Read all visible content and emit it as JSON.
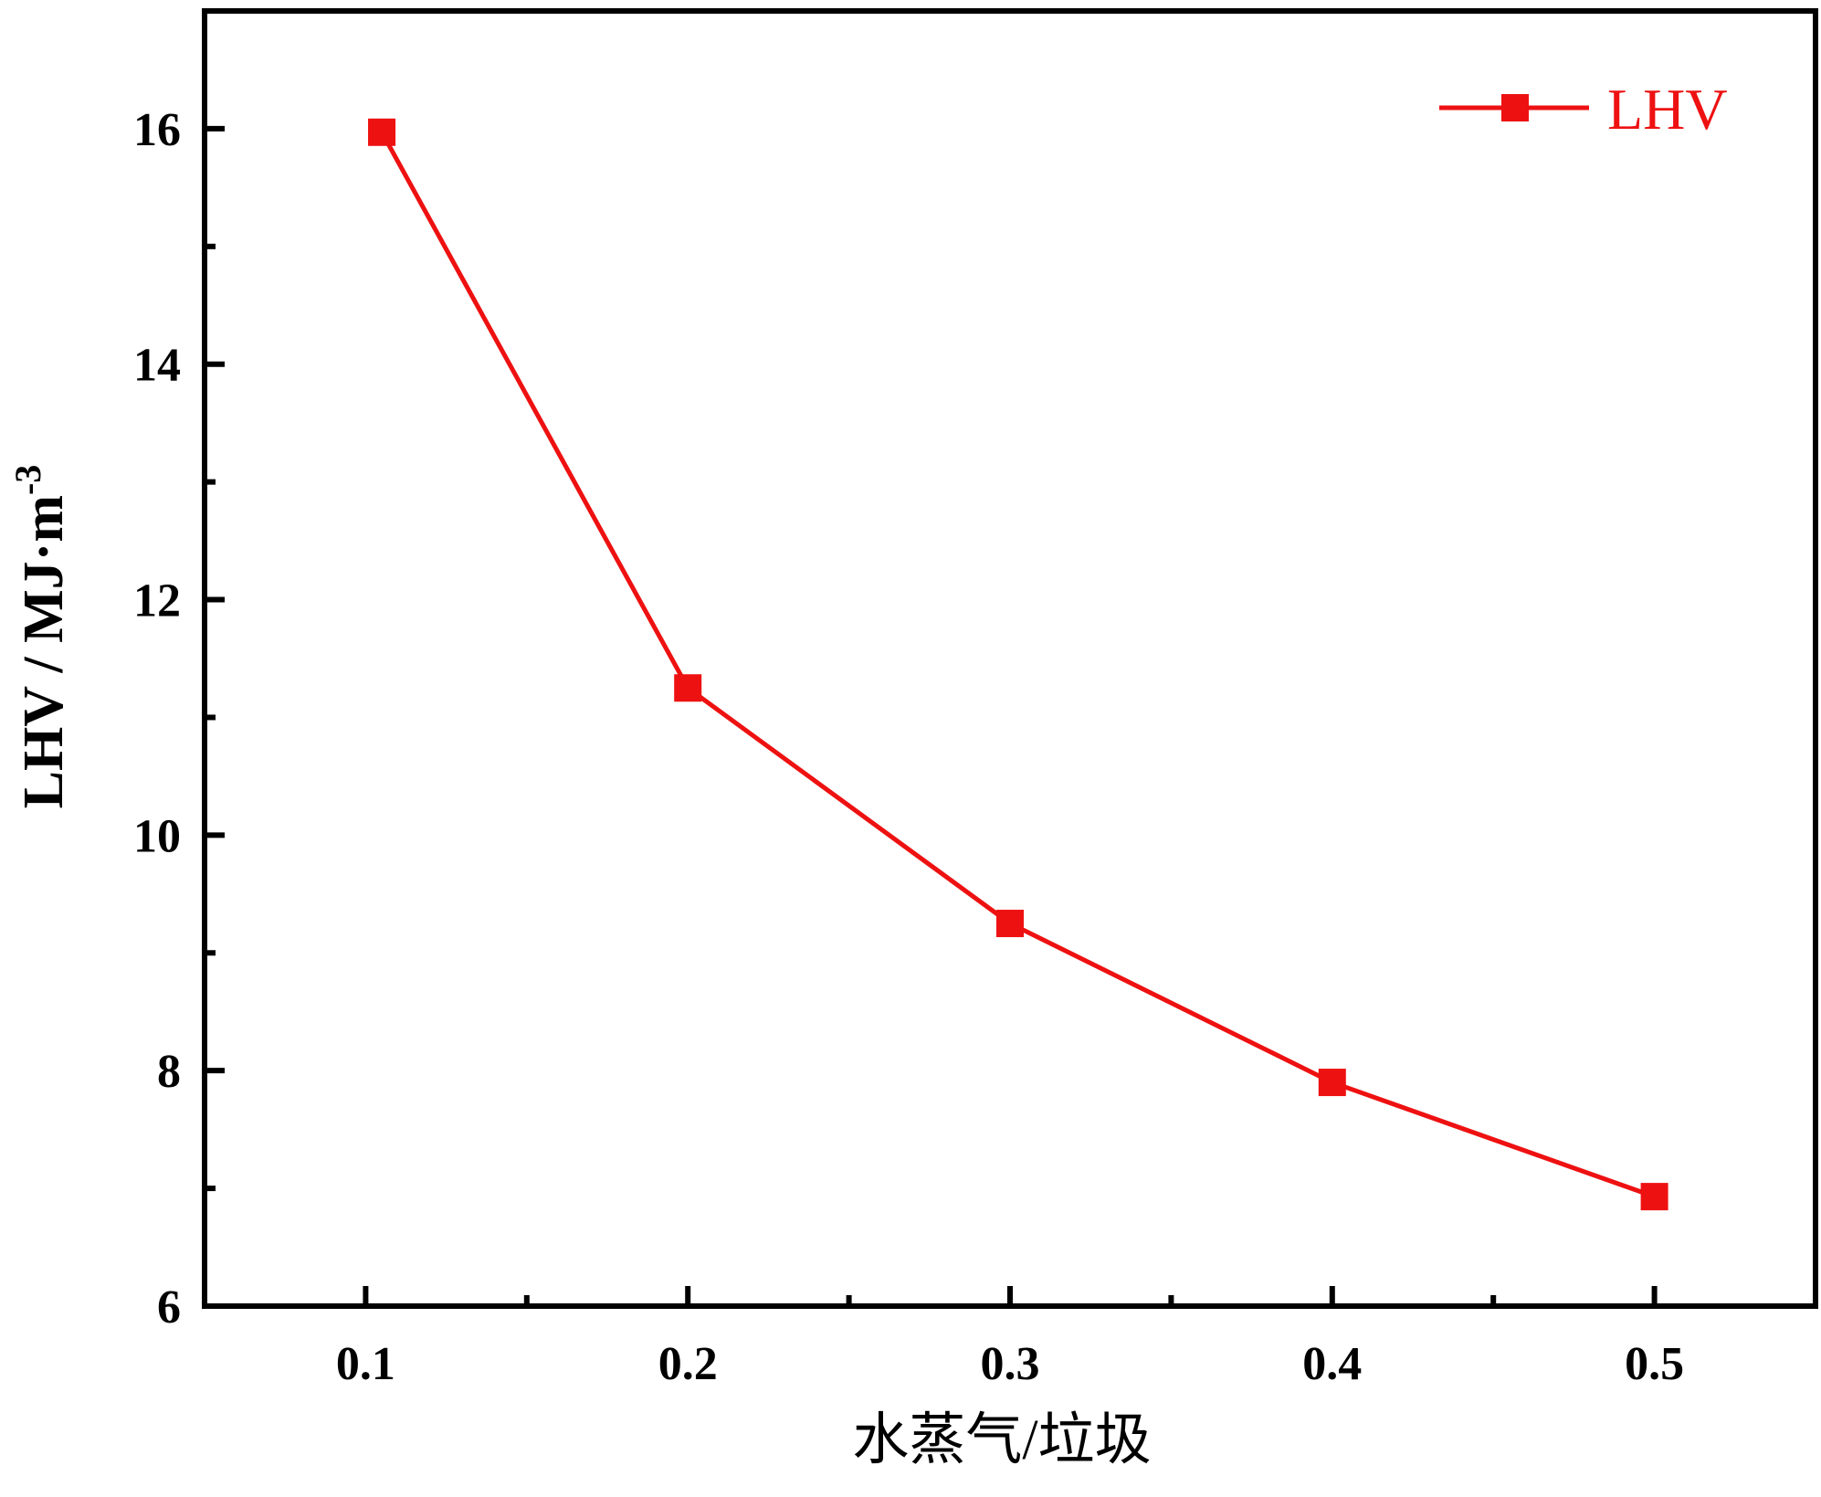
{
  "chart_data": {
    "type": "line",
    "xlabel": "水蒸气/垃圾",
    "ylabel_main": "LHV / MJ·m",
    "ylabel_sup": "-3",
    "x_ticks": [
      "0.1",
      "0.2",
      "0.3",
      "0.4",
      "0.5"
    ],
    "y_ticks": [
      "6",
      "8",
      "10",
      "12",
      "14",
      "16"
    ],
    "xlim": [
      0.05,
      0.55
    ],
    "ylim": [
      6,
      17
    ],
    "grid": false,
    "legend_position": "top-right",
    "series": [
      {
        "name": "LHV",
        "color": "#ee1111",
        "marker": "square",
        "x": [
          0.105,
          0.2,
          0.3,
          0.4,
          0.5
        ],
        "y": [
          15.97,
          11.25,
          9.25,
          7.9,
          6.93
        ]
      }
    ]
  }
}
